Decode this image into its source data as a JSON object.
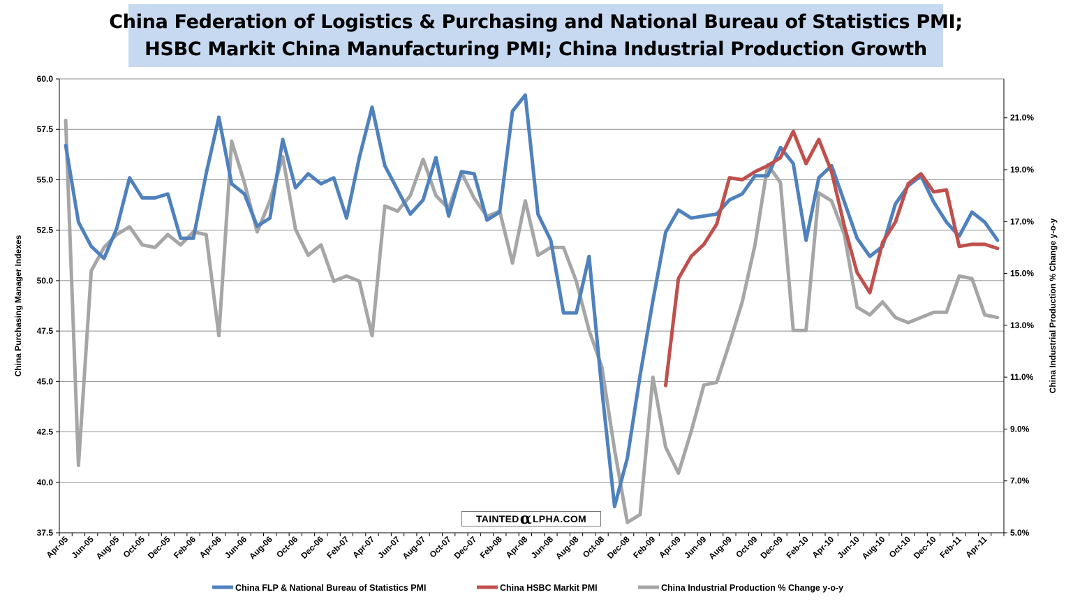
{
  "title": {
    "line1": "China Federation of Logistics & Purchasing and National Bureau of Statistics PMI;",
    "line2": "HSBC Markit China Manufacturing PMI; China Industrial Production Growth"
  },
  "watermark": {
    "pre": "TAINTED",
    "alpha": "α",
    "post": "LPHA.COM"
  },
  "chart_data": {
    "type": "line",
    "ylabel_left": "China Purchasing Manager Indexes",
    "ylabel_right": "China Industrial Production % Change y-o-y",
    "ylim_left": [
      37.5,
      60.0
    ],
    "ylim_right": [
      5.0,
      22.5
    ],
    "yticks_left": [
      "37.5",
      "40.0",
      "42.5",
      "45.0",
      "47.5",
      "50.0",
      "52.5",
      "55.0",
      "57.5",
      "60.0"
    ],
    "yticks_right": [
      "5.0%",
      "7.0%",
      "9.0%",
      "11.0%",
      "13.0%",
      "15.0%",
      "17.0%",
      "19.0%",
      "21.0%"
    ],
    "grid": true,
    "legend_position": "bottom",
    "x": [
      "Apr-05",
      "May-05",
      "Jun-05",
      "Jul-05",
      "Aug-05",
      "Sep-05",
      "Oct-05",
      "Nov-05",
      "Dec-05",
      "Jan-06",
      "Feb-06",
      "Mar-06",
      "Apr-06",
      "May-06",
      "Jun-06",
      "Jul-06",
      "Aug-06",
      "Sep-06",
      "Oct-06",
      "Nov-06",
      "Dec-06",
      "Jan-07",
      "Feb-07",
      "Mar-07",
      "Apr-07",
      "May-07",
      "Jun-07",
      "Jul-07",
      "Aug-07",
      "Sep-07",
      "Oct-07",
      "Nov-07",
      "Dec-07",
      "Jan-08",
      "Feb-08",
      "Mar-08",
      "Apr-08",
      "May-08",
      "Jun-08",
      "Jul-08",
      "Aug-08",
      "Sep-08",
      "Oct-08",
      "Nov-08",
      "Dec-08",
      "Jan-09",
      "Feb-09",
      "Mar-09",
      "Apr-09",
      "May-09",
      "Jun-09",
      "Jul-09",
      "Aug-09",
      "Sep-09",
      "Oct-09",
      "Nov-09",
      "Dec-09",
      "Jan-10",
      "Feb-10",
      "Mar-10",
      "Apr-10",
      "May-10",
      "Jun-10",
      "Jul-10",
      "Aug-10",
      "Sep-10",
      "Oct-10",
      "Nov-10",
      "Dec-10",
      "Jan-11",
      "Feb-11",
      "Mar-11",
      "Apr-11",
      "May-11"
    ],
    "x_tick_labels": [
      "Apr-05",
      "Jun-05",
      "Aug-05",
      "Oct-05",
      "Dec-05",
      "Feb-06",
      "Apr-06",
      "Jun-06",
      "Aug-06",
      "Oct-06",
      "Dec-06",
      "Feb-07",
      "Apr-07",
      "Jun-07",
      "Aug-07",
      "Oct-07",
      "Dec-07",
      "Feb-08",
      "Apr-08",
      "Jun-08",
      "Aug-08",
      "Oct-08",
      "Dec-08",
      "Feb-09",
      "Apr-09",
      "Jun-09",
      "Aug-09",
      "Oct-09",
      "Dec-09",
      "Feb-10",
      "Apr-10",
      "Jun-10",
      "Aug-10",
      "Oct-10",
      "Dec-10",
      "Feb-11",
      "Apr-11"
    ],
    "series": [
      {
        "name": "China FLP & National Bureau of Statistics PMI",
        "axis": "left",
        "color": "#4f81bd",
        "values": [
          56.7,
          52.9,
          51.7,
          51.1,
          52.6,
          55.1,
          54.1,
          54.1,
          54.3,
          52.1,
          52.1,
          55.3,
          58.1,
          54.8,
          54.3,
          52.7,
          53.1,
          57.0,
          54.6,
          55.3,
          54.8,
          55.1,
          53.1,
          56.1,
          58.6,
          55.7,
          54.5,
          53.3,
          54.0,
          56.1,
          53.2,
          55.4,
          55.3,
          53.0,
          53.4,
          58.4,
          59.2,
          53.3,
          52.0,
          48.4,
          48.4,
          51.2,
          44.6,
          38.8,
          41.2,
          45.3,
          49.0,
          52.4,
          53.5,
          53.1,
          53.2,
          53.3,
          54.0,
          54.3,
          55.2,
          55.2,
          56.6,
          55.8,
          52.0,
          55.1,
          55.7,
          53.9,
          52.1,
          51.2,
          51.7,
          53.8,
          54.7,
          55.2,
          53.9,
          52.9,
          52.2,
          53.4,
          52.9,
          52.0
        ]
      },
      {
        "name": "China HSBC  Markit PMI",
        "axis": "left",
        "color": "#c0504d",
        "values": [
          null,
          null,
          null,
          null,
          null,
          null,
          null,
          null,
          null,
          null,
          null,
          null,
          null,
          null,
          null,
          null,
          null,
          null,
          null,
          null,
          null,
          null,
          null,
          null,
          null,
          null,
          null,
          null,
          null,
          null,
          null,
          null,
          null,
          null,
          null,
          null,
          null,
          null,
          null,
          null,
          null,
          null,
          null,
          null,
          null,
          null,
          null,
          44.8,
          50.1,
          51.2,
          51.8,
          52.8,
          55.1,
          55.0,
          55.4,
          55.7,
          56.1,
          57.4,
          55.8,
          57.0,
          55.4,
          52.7,
          50.4,
          49.4,
          51.9,
          52.9,
          54.8,
          55.3,
          54.4,
          54.5,
          51.7,
          51.8,
          51.8,
          51.6
        ]
      },
      {
        "name": "China Industrial Production % Change y-o-y",
        "axis": "right",
        "color": "#a6a6a6",
        "values": [
          20.9,
          7.6,
          15.1,
          16.0,
          16.5,
          16.8,
          16.1,
          16.0,
          16.5,
          16.1,
          16.6,
          16.5,
          12.6,
          20.1,
          18.5,
          16.6,
          17.8,
          19.5,
          16.7,
          15.7,
          16.1,
          14.7,
          14.9,
          14.7,
          12.6,
          17.6,
          17.4,
          18.0,
          19.4,
          18.0,
          17.5,
          18.9,
          17.9,
          17.2,
          17.4,
          15.4,
          17.8,
          15.7,
          16.0,
          16.0,
          14.7,
          12.8,
          11.4,
          8.2,
          5.4,
          5.7,
          11.0,
          8.3,
          7.3,
          8.9,
          10.7,
          10.8,
          12.3,
          13.9,
          16.1,
          19.2,
          18.5,
          12.8,
          12.8,
          18.1,
          17.8,
          16.5,
          13.7,
          13.4,
          13.9,
          13.3,
          13.1,
          13.3,
          13.5,
          13.5,
          14.9,
          14.8,
          13.4,
          13.3
        ]
      }
    ]
  }
}
